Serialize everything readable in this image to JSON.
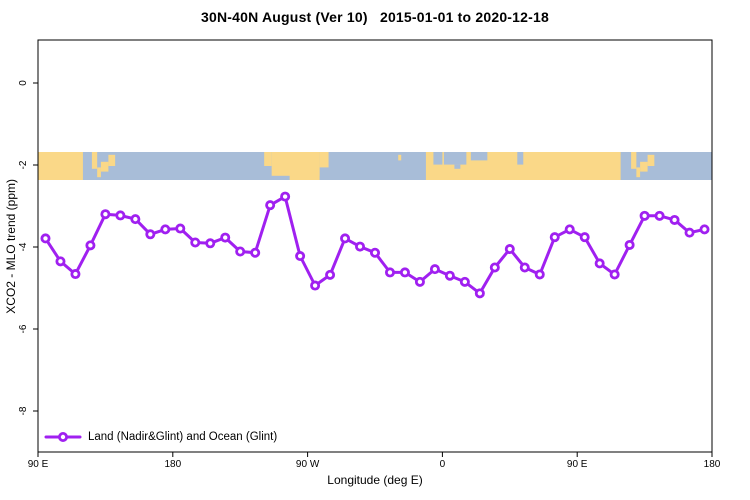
{
  "title": "30N-40N August (Ver 10)   2015-01-01 to 2020-12-18",
  "axes": {
    "x_label": "Longitude (deg E)",
    "y_label": "XCO2 - MLO trend (ppm)",
    "x_ticks": [
      {
        "lon": 90,
        "label": "90 E"
      },
      {
        "lon": 180,
        "label": "180"
      },
      {
        "lon": 270,
        "label": "90 W"
      },
      {
        "lon": 360,
        "label": "0"
      },
      {
        "lon": 450,
        "label": "90 E"
      },
      {
        "lon": 540,
        "label": "180"
      }
    ],
    "y_ticks": [
      {
        "v": 0,
        "label": "0"
      },
      {
        "v": -2,
        "label": "-2"
      },
      {
        "v": -4,
        "label": "-4"
      },
      {
        "v": -6,
        "label": "-6"
      },
      {
        "v": -8,
        "label": "-8"
      }
    ]
  },
  "legend": {
    "label": "Land (Nadir&Glint) and Ocean (Glint)"
  },
  "colors": {
    "series": "#A020F0",
    "marker_fill": "#ffffff",
    "land": "#FAD888",
    "ocean": "#A8BDD8",
    "axis": "#000000",
    "background": "#ffffff"
  },
  "chart_data": {
    "type": "line",
    "title": "30N-40N August (Ver 10)   2015-01-01 to 2020-12-18",
    "xlabel": "Longitude (deg E)",
    "ylabel": "XCO2 - MLO trend (ppm)",
    "xlim": [
      90,
      540
    ],
    "ylim": [
      -9,
      1
    ],
    "grid": false,
    "legend_position": "bottom-left-inside",
    "x_axis_note": "longitude wraps: 90E through 180, 90W, 0, 90E to 180",
    "series": [
      {
        "name": "Land (Nadir&Glint) and Ocean (Glint)",
        "marker": "open-circle",
        "x": [
          95,
          105,
          115,
          125,
          135,
          145,
          155,
          165,
          175,
          185,
          195,
          205,
          215,
          225,
          235,
          245,
          255,
          265,
          275,
          285,
          295,
          305,
          315,
          325,
          335,
          345,
          355,
          365,
          375,
          385,
          395,
          405,
          415,
          425,
          435,
          445,
          455,
          465,
          475,
          485,
          495,
          505,
          515,
          525,
          535
        ],
        "y": [
          -3.79,
          -4.35,
          -4.66,
          -3.96,
          -3.2,
          -3.23,
          -3.32,
          -3.69,
          -3.57,
          -3.55,
          -3.89,
          -3.91,
          -3.77,
          -4.11,
          -4.14,
          -2.98,
          -2.77,
          -4.22,
          -4.94,
          -4.68,
          -3.79,
          -3.99,
          -4.14,
          -4.62,
          -4.62,
          -4.85,
          -4.54,
          -4.7,
          -4.85,
          -5.13,
          -4.5,
          -4.05,
          -4.5,
          -4.67,
          -3.76,
          -3.57,
          -3.76,
          -4.4,
          -4.67,
          -3.95,
          -3.24,
          -3.24,
          -3.34,
          -3.65,
          -3.57
        ]
      }
    ],
    "map_strip": {
      "description": "land/ocean band for 30N-40N latitude drawn across plot",
      "value_top": -1.68,
      "value_bottom": -2.37,
      "land_blocks": [
        [
          90,
          120,
          0,
          1
        ],
        [
          126,
          129.5,
          0,
          0.6
        ],
        [
          129.5,
          132,
          0.55,
          0.9
        ],
        [
          132,
          137,
          0.35,
          0.7
        ],
        [
          137,
          141.5,
          0.1,
          0.5
        ],
        [
          241,
          246,
          0,
          0.5
        ],
        [
          246,
          278,
          0,
          0.85
        ],
        [
          258,
          278,
          0,
          1
        ],
        [
          278,
          284,
          0,
          0.55
        ],
        [
          330.5,
          332.5,
          0.1,
          0.3
        ],
        [
          349,
          479,
          0,
          1
        ],
        [
          486,
          489.5,
          0,
          0.6
        ],
        [
          489.5,
          492,
          0.55,
          0.9
        ],
        [
          492,
          497,
          0.35,
          0.7
        ],
        [
          497,
          501.5,
          0.1,
          0.5
        ]
      ],
      "sea_patches": [
        [
          354,
          360,
          0,
          0.45
        ],
        [
          361,
          376,
          0,
          0.45
        ],
        [
          368,
          372,
          0.45,
          0.6
        ],
        [
          379,
          390,
          0,
          0.3
        ],
        [
          410,
          414,
          0,
          0.45
        ]
      ]
    }
  }
}
